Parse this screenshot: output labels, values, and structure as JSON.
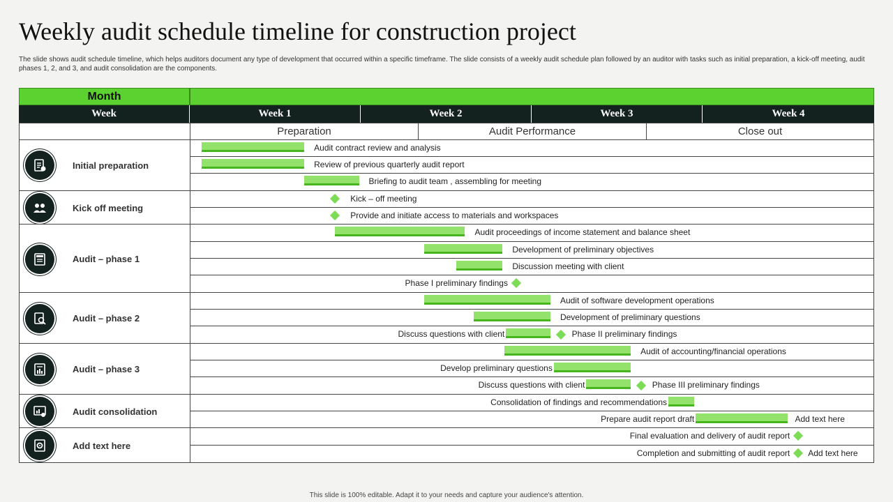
{
  "title": "Weekly audit schedule timeline for construction project",
  "description": "The slide shows audit schedule timeline,  which helps auditors document any type of development that occurred within a specific timeframe. The slide consists of a weekly audit schedule plan followed by an auditor with tasks such as initial preparation, a kick-off meeting, audit phases 1, 2, and 3, and audit consolidation are the components.",
  "footer": "This slide is 100% editable. Adapt it to your needs and capture your audience's attention.",
  "colors": {
    "accent": "#5bd22f",
    "bar": "#92e26c",
    "header_dark": "#13211f"
  },
  "table": {
    "month_label": "Month",
    "week_label": "Week",
    "weeks": [
      "Week 1",
      "Week 2",
      "Week 3",
      "Week 4"
    ],
    "phases": [
      "Preparation",
      "Audit Performance",
      "Close out"
    ]
  },
  "groups": [
    {
      "label": "Initial preparation",
      "icon": "checklist-icon"
    },
    {
      "label": "Kick off meeting",
      "icon": "meeting-people-icon"
    },
    {
      "label": "Audit – phase 1",
      "icon": "audit-document-icon"
    },
    {
      "label": "Audit – phase 2",
      "icon": "magnify-report-icon"
    },
    {
      "label": "Audit – phase 3",
      "icon": "bar-report-icon"
    },
    {
      "label": "Audit consolidation",
      "icon": "chart-search-icon"
    },
    {
      "label": "Add text here",
      "icon": "gear-document-icon"
    }
  ],
  "tasks": [
    {
      "label": "Audit contract review and analysis",
      "type": "bar",
      "start_week": 0.07,
      "end_week": 0.67,
      "label_side": "right"
    },
    {
      "label": "Review of previous quarterly audit report",
      "type": "bar",
      "start_week": 0.07,
      "end_week": 0.67,
      "label_side": "right"
    },
    {
      "label": "Briefing to audit team , assembling for meeting",
      "type": "bar",
      "start_week": 0.67,
      "end_week": 0.99,
      "label_side": "right"
    },
    {
      "label": "Kick – off meeting",
      "type": "milestone",
      "at_week": 0.85,
      "label_side": "right"
    },
    {
      "label": "Provide and initiate access to materials and workspaces",
      "type": "milestone",
      "at_week": 0.85,
      "label_side": "right"
    },
    {
      "label": "Audit proceedings of income statement and balance sheet",
      "type": "bar",
      "start_week": 0.85,
      "end_week": 1.61,
      "label_side": "right"
    },
    {
      "label": "Development of preliminary objectives",
      "type": "bar",
      "start_week": 1.37,
      "end_week": 1.83,
      "label_side": "right"
    },
    {
      "label": "Discussion meeting with client",
      "type": "bar",
      "start_week": 1.56,
      "end_week": 1.83,
      "label_side": "right"
    },
    {
      "label": "Phase I preliminary findings",
      "type": "milestone",
      "at_week": 1.91,
      "label_side": "left"
    },
    {
      "label": "Audit of software development operations",
      "type": "bar",
      "start_week": 1.37,
      "end_week": 2.11,
      "label_side": "right"
    },
    {
      "label": "Development of preliminary questions",
      "type": "bar",
      "start_week": 1.66,
      "end_week": 2.11,
      "label_side": "right"
    },
    {
      "label": "Discuss questions with client",
      "type": "bar",
      "start_week": 1.85,
      "end_week": 2.11,
      "label_side": "left",
      "milestone_at_week": 2.17,
      "milestone_label": "Phase II preliminary findings"
    },
    {
      "label": "Audit of accounting/financial operations",
      "type": "bar",
      "start_week": 1.84,
      "end_week": 2.58,
      "label_side": "right"
    },
    {
      "label": "Develop preliminary questions",
      "type": "bar",
      "start_week": 2.13,
      "end_week": 2.58,
      "label_side": "left"
    },
    {
      "label": "Discuss questions with client",
      "type": "bar",
      "start_week": 2.32,
      "end_week": 2.58,
      "label_side": "left",
      "milestone_at_week": 2.64,
      "milestone_label": "Phase III preliminary findings"
    },
    {
      "label": "Consolidation of findings and recommendations",
      "type": "bar",
      "start_week": 2.8,
      "end_week": 2.95,
      "label_side": "left"
    },
    {
      "label": "Prepare audit report draft",
      "type": "bar",
      "start_week": 2.96,
      "end_week": 3.5,
      "label_side": "left",
      "extra_label": "Add text here"
    },
    {
      "label": "Final evaluation and delivery of audit report",
      "type": "milestone",
      "at_week": 3.56,
      "label_side": "left"
    },
    {
      "label": "Completion and submitting of audit report",
      "type": "milestone",
      "at_week": 3.56,
      "label_side": "left",
      "extra_label": "Add text here"
    }
  ]
}
